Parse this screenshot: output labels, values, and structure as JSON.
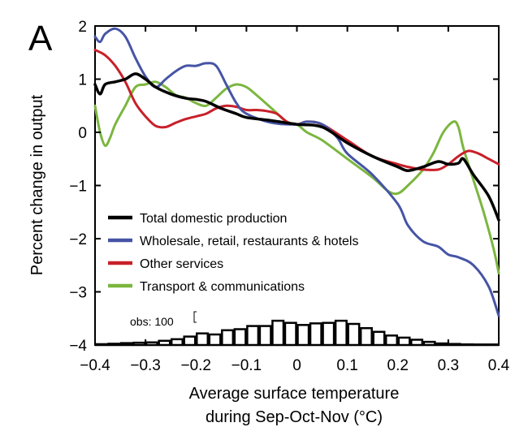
{
  "panel_label": "A",
  "chart_data": {
    "type": "line",
    "xlabel_line1": "Average surface temperature",
    "xlabel_line2": "during Sep-Oct-Nov (°C)",
    "ylabel": "Percent change in output",
    "xlim": [
      -0.4,
      0.4
    ],
    "ylim": [
      -4,
      2
    ],
    "x_ticks": [
      -0.4,
      -0.3,
      -0.2,
      -0.1,
      0,
      0.1,
      0.2,
      0.3,
      0.4
    ],
    "x_tick_labels": [
      "−0.4",
      "−0.3",
      "−0.2",
      "−0.1",
      "0",
      "0.1",
      "0.2",
      "0.3",
      "0.4"
    ],
    "y_ticks": [
      2,
      1,
      0,
      -1,
      -2,
      -3,
      -4
    ],
    "y_tick_labels": [
      "2",
      "1",
      "0",
      "−1",
      "−2",
      "−3",
      "−4"
    ],
    "series": [
      {
        "name": "Total domestic production",
        "color": "#000000",
        "points": [
          [
            -0.4,
            0.9
          ],
          [
            -0.39,
            0.72
          ],
          [
            -0.38,
            0.9
          ],
          [
            -0.36,
            0.95
          ],
          [
            -0.34,
            1.0
          ],
          [
            -0.32,
            1.1
          ],
          [
            -0.3,
            1.0
          ],
          [
            -0.28,
            0.85
          ],
          [
            -0.25,
            0.72
          ],
          [
            -0.22,
            0.64
          ],
          [
            -0.2,
            0.62
          ],
          [
            -0.18,
            0.58
          ],
          [
            -0.15,
            0.45
          ],
          [
            -0.12,
            0.35
          ],
          [
            -0.1,
            0.28
          ],
          [
            -0.05,
            0.22
          ],
          [
            0.0,
            0.15
          ],
          [
            0.05,
            0.1
          ],
          [
            0.1,
            -0.2
          ],
          [
            0.15,
            -0.45
          ],
          [
            0.2,
            -0.65
          ],
          [
            0.22,
            -0.72
          ],
          [
            0.25,
            -0.65
          ],
          [
            0.28,
            -0.55
          ],
          [
            0.3,
            -0.6
          ],
          [
            0.32,
            -0.58
          ],
          [
            0.33,
            -0.5
          ],
          [
            0.35,
            -0.8
          ],
          [
            0.38,
            -1.2
          ],
          [
            0.4,
            -1.65
          ]
        ]
      },
      {
        "name": "Wholesale, retail, restaurants & hotels",
        "color": "#4654a6",
        "points": [
          [
            -0.4,
            1.8
          ],
          [
            -0.39,
            1.7
          ],
          [
            -0.38,
            1.85
          ],
          [
            -0.36,
            1.95
          ],
          [
            -0.34,
            1.8
          ],
          [
            -0.32,
            1.4
          ],
          [
            -0.3,
            1.05
          ],
          [
            -0.28,
            0.85
          ],
          [
            -0.26,
            1.0
          ],
          [
            -0.24,
            1.15
          ],
          [
            -0.22,
            1.25
          ],
          [
            -0.2,
            1.25
          ],
          [
            -0.18,
            1.3
          ],
          [
            -0.16,
            1.25
          ],
          [
            -0.14,
            0.9
          ],
          [
            -0.12,
            0.55
          ],
          [
            -0.1,
            0.35
          ],
          [
            -0.05,
            0.18
          ],
          [
            0.0,
            0.15
          ],
          [
            0.02,
            0.2
          ],
          [
            0.05,
            0.15
          ],
          [
            0.08,
            -0.1
          ],
          [
            0.1,
            -0.4
          ],
          [
            0.15,
            -0.8
          ],
          [
            0.2,
            -1.35
          ],
          [
            0.22,
            -1.75
          ],
          [
            0.25,
            -2.05
          ],
          [
            0.28,
            -2.15
          ],
          [
            0.3,
            -2.3
          ],
          [
            0.32,
            -2.35
          ],
          [
            0.35,
            -2.5
          ],
          [
            0.38,
            -2.9
          ],
          [
            0.4,
            -3.45
          ]
        ]
      },
      {
        "name": "Other services",
        "color": "#c8202a",
        "points": [
          [
            -0.4,
            1.55
          ],
          [
            -0.38,
            1.45
          ],
          [
            -0.36,
            1.25
          ],
          [
            -0.34,
            0.95
          ],
          [
            -0.32,
            0.55
          ],
          [
            -0.3,
            0.3
          ],
          [
            -0.28,
            0.12
          ],
          [
            -0.26,
            0.1
          ],
          [
            -0.24,
            0.18
          ],
          [
            -0.22,
            0.25
          ],
          [
            -0.2,
            0.3
          ],
          [
            -0.18,
            0.35
          ],
          [
            -0.16,
            0.45
          ],
          [
            -0.14,
            0.5
          ],
          [
            -0.12,
            0.48
          ],
          [
            -0.1,
            0.42
          ],
          [
            -0.08,
            0.42
          ],
          [
            -0.06,
            0.4
          ],
          [
            -0.04,
            0.35
          ],
          [
            -0.02,
            0.2
          ],
          [
            0.0,
            0.15
          ],
          [
            0.02,
            0.2
          ],
          [
            0.05,
            0.15
          ],
          [
            0.1,
            -0.15
          ],
          [
            0.15,
            -0.45
          ],
          [
            0.2,
            -0.6
          ],
          [
            0.22,
            -0.65
          ],
          [
            0.25,
            -0.7
          ],
          [
            0.28,
            -0.7
          ],
          [
            0.3,
            -0.6
          ],
          [
            0.32,
            -0.45
          ],
          [
            0.34,
            -0.35
          ],
          [
            0.36,
            -0.4
          ],
          [
            0.38,
            -0.5
          ],
          [
            0.4,
            -0.6
          ]
        ]
      },
      {
        "name": "Transport & communications",
        "color": "#7bb63f",
        "points": [
          [
            -0.4,
            0.5
          ],
          [
            -0.39,
            0.0
          ],
          [
            -0.38,
            -0.25
          ],
          [
            -0.37,
            -0.1
          ],
          [
            -0.36,
            0.15
          ],
          [
            -0.34,
            0.5
          ],
          [
            -0.32,
            0.85
          ],
          [
            -0.3,
            0.9
          ],
          [
            -0.28,
            0.95
          ],
          [
            -0.26,
            0.85
          ],
          [
            -0.24,
            0.7
          ],
          [
            -0.22,
            0.65
          ],
          [
            -0.2,
            0.55
          ],
          [
            -0.18,
            0.5
          ],
          [
            -0.16,
            0.65
          ],
          [
            -0.14,
            0.82
          ],
          [
            -0.12,
            0.9
          ],
          [
            -0.1,
            0.85
          ],
          [
            -0.08,
            0.7
          ],
          [
            -0.05,
            0.45
          ],
          [
            -0.02,
            0.2
          ],
          [
            0.0,
            0.15
          ],
          [
            0.02,
            0.0
          ],
          [
            0.05,
            -0.15
          ],
          [
            0.1,
            -0.5
          ],
          [
            0.15,
            -0.85
          ],
          [
            0.18,
            -1.1
          ],
          [
            0.2,
            -1.15
          ],
          [
            0.22,
            -1.0
          ],
          [
            0.25,
            -0.7
          ],
          [
            0.27,
            -0.4
          ],
          [
            0.29,
            0.0
          ],
          [
            0.31,
            0.2
          ],
          [
            0.32,
            0.1
          ],
          [
            0.33,
            -0.3
          ],
          [
            0.35,
            -0.9
          ],
          [
            0.37,
            -1.5
          ],
          [
            0.39,
            -2.2
          ],
          [
            0.4,
            -2.65
          ]
        ]
      }
    ],
    "histogram": {
      "annotation": "obs: 100",
      "annotation_count": 100,
      "bin_width": 0.025,
      "bin_starts": [
        -0.4,
        -0.375,
        -0.35,
        -0.325,
        -0.3,
        -0.275,
        -0.25,
        -0.225,
        -0.2,
        -0.175,
        -0.15,
        -0.125,
        -0.1,
        -0.075,
        -0.05,
        -0.025,
        0.0,
        0.025,
        0.05,
        0.075,
        0.1,
        0.125,
        0.15,
        0.175,
        0.2,
        0.225,
        0.25,
        0.275,
        0.3,
        0.325,
        0.35,
        0.375
      ],
      "counts": [
        8,
        12,
        18,
        22,
        25,
        40,
        55,
        80,
        110,
        100,
        140,
        150,
        180,
        180,
        230,
        210,
        190,
        205,
        210,
        230,
        200,
        160,
        125,
        90,
        70,
        50,
        30,
        15,
        10,
        6,
        5,
        5
      ]
    }
  }
}
